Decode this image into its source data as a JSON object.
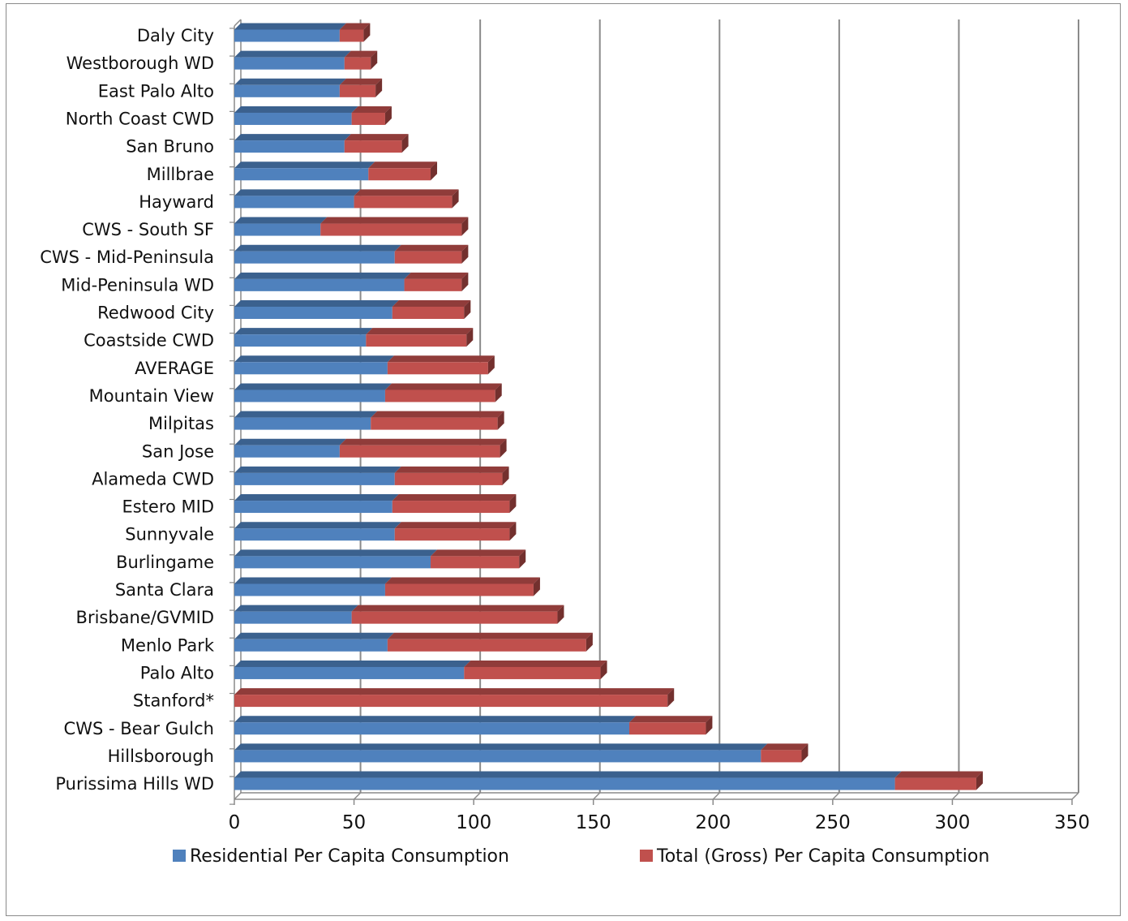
{
  "chart_data": {
    "type": "bar",
    "orientation": "horizontal",
    "stacked": true,
    "categories": [
      "Daly City",
      "Westborough WD",
      "East Palo Alto",
      "North Coast CWD",
      "San Bruno",
      "Millbrae",
      "Hayward",
      "CWS - South SF",
      "CWS - Mid-Peninsula",
      "Mid-Peninsula WD",
      "Redwood City",
      "Coastside CWD",
      "AVERAGE",
      "Mountain View",
      "Milpitas",
      "San Jose",
      "Alameda CWD",
      "Estero MID",
      "Sunnyvale",
      "Burlingame",
      "Santa Clara",
      "Brisbane/GVMID",
      "Menlo Park",
      "Palo Alto",
      "Stanford*",
      "CWS - Bear Gulch",
      "Hillsborough",
      "Purissima Hills WD"
    ],
    "series": [
      {
        "name": "Residential Per Capita Consumption",
        "color": "#4f81bd",
        "values": [
          44,
          46,
          44,
          49,
          46,
          56,
          50,
          36,
          67,
          71,
          66,
          55,
          64,
          63,
          57,
          44,
          67,
          66,
          67,
          82,
          63,
          49,
          64,
          96,
          0,
          165,
          220,
          276
        ]
      },
      {
        "name": "Total (Gross) Per Capita Consumption",
        "color": "#c0504d",
        "values": [
          10,
          11,
          15,
          14,
          24,
          26,
          41,
          59,
          28,
          24,
          30,
          42,
          42,
          46,
          53,
          67,
          45,
          49,
          48,
          37,
          62,
          86,
          83,
          57,
          181,
          32,
          17,
          34
        ]
      }
    ],
    "xticks": [
      "0",
      "50",
      "100",
      "150",
      "200",
      "250",
      "300",
      "350"
    ],
    "xlim": [
      0,
      350
    ],
    "grid": "vertical major gridlines",
    "legend": "bottom"
  }
}
